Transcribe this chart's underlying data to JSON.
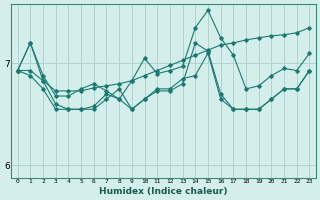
{
  "title": "",
  "xlabel": "Humidex (Indice chaleur)",
  "background_color": "#d4eeec",
  "grid_color": "#b0d4d0",
  "line_color": "#1a7a6e",
  "ylim": [
    5.88,
    7.58
  ],
  "xlim": [
    -0.5,
    23.5
  ],
  "yticks": [
    6,
    7
  ],
  "xticks": [
    0,
    1,
    2,
    3,
    4,
    5,
    6,
    7,
    8,
    9,
    10,
    11,
    12,
    13,
    14,
    15,
    16,
    17,
    18,
    19,
    20,
    21,
    22,
    23
  ],
  "series": [
    [
      6.93,
      6.93,
      6.83,
      6.73,
      6.73,
      6.73,
      6.76,
      6.78,
      6.8,
      6.83,
      6.88,
      6.93,
      6.98,
      7.03,
      7.08,
      7.13,
      7.18,
      7.2,
      7.23,
      7.25,
      7.27,
      7.28,
      7.3,
      7.35
    ],
    [
      6.93,
      7.2,
      6.88,
      6.68,
      6.68,
      6.75,
      6.8,
      6.73,
      6.65,
      6.83,
      7.05,
      6.9,
      6.93,
      6.97,
      7.35,
      7.52,
      7.25,
      7.08,
      6.75,
      6.78,
      6.88,
      6.95,
      6.93,
      7.1
    ],
    [
      6.93,
      7.2,
      6.83,
      6.6,
      6.55,
      6.55,
      6.58,
      6.7,
      6.65,
      6.55,
      6.65,
      6.73,
      6.73,
      6.8,
      7.2,
      7.12,
      6.7,
      6.55,
      6.55,
      6.55,
      6.65,
      6.75,
      6.75,
      6.93
    ],
    [
      6.93,
      6.88,
      6.75,
      6.55,
      6.55,
      6.55,
      6.55,
      6.65,
      6.75,
      6.55,
      6.65,
      6.75,
      6.75,
      6.85,
      6.88,
      7.1,
      6.65,
      6.55,
      6.55,
      6.55,
      6.65,
      6.75,
      6.75,
      6.93
    ]
  ]
}
